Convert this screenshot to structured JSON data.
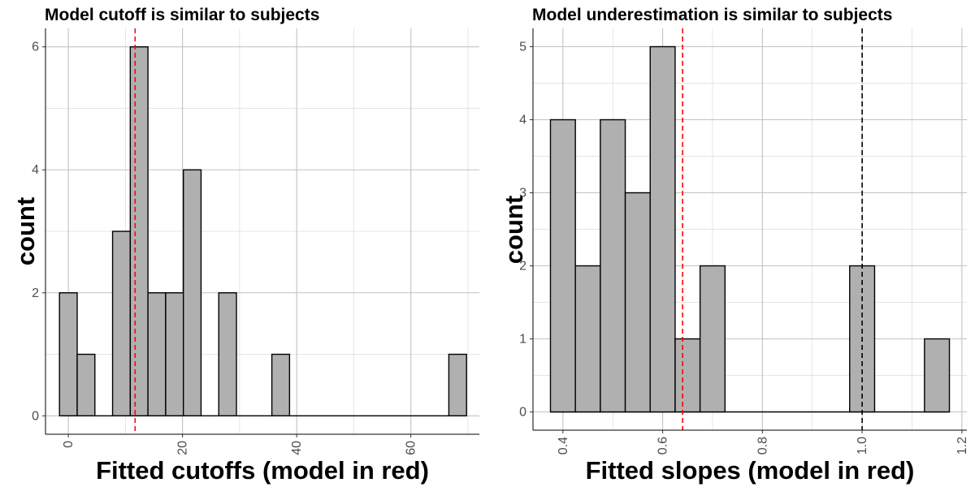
{
  "chart_data": [
    {
      "type": "bar",
      "title": "Model cutoff is similar to subjects",
      "xlabel": "Fitted cutoffs (model in red)",
      "ylabel": "count",
      "bin_width": 3.1,
      "bins": [
        {
          "x": 0.0,
          "count": 2
        },
        {
          "x": 3.1,
          "count": 1
        },
        {
          "x": 9.3,
          "count": 3
        },
        {
          "x": 12.4,
          "count": 6
        },
        {
          "x": 15.5,
          "count": 2
        },
        {
          "x": 18.6,
          "count": 2
        },
        {
          "x": 21.7,
          "count": 4
        },
        {
          "x": 27.9,
          "count": 2
        },
        {
          "x": 37.2,
          "count": 1
        },
        {
          "x": 68.2,
          "count": 1
        }
      ],
      "xlim": [
        -4.0,
        72.0
      ],
      "ylim": [
        -0.3,
        6.3
      ],
      "x_ticks": [
        0,
        20,
        40,
        60
      ],
      "x_tick_labels": [
        "0",
        "20",
        "40",
        "60"
      ],
      "y_ticks": [
        0,
        2,
        4,
        6
      ],
      "y_tick_labels": [
        "0",
        "2",
        "4",
        "6"
      ],
      "reference_lines": [
        {
          "x": 11.7,
          "color": "#ff0000",
          "style": "dashed"
        }
      ],
      "bar_fill": "#b0b0b0",
      "grid": true
    },
    {
      "type": "bar",
      "title": "Model underestimation is similar to subjects",
      "xlabel": "Fitted slopes (model in red)",
      "ylabel": "count",
      "bin_width": 0.05,
      "bins": [
        {
          "x": 0.4,
          "count": 4
        },
        {
          "x": 0.45,
          "count": 2
        },
        {
          "x": 0.5,
          "count": 4
        },
        {
          "x": 0.55,
          "count": 3
        },
        {
          "x": 0.6,
          "count": 5
        },
        {
          "x": 0.65,
          "count": 1
        },
        {
          "x": 0.7,
          "count": 2
        },
        {
          "x": 1.0,
          "count": 2
        },
        {
          "x": 1.15,
          "count": 1
        }
      ],
      "xlim": [
        0.34,
        1.21
      ],
      "ylim": [
        -0.25,
        5.25
      ],
      "x_ticks": [
        0.4,
        0.6,
        0.8,
        1.0,
        1.2
      ],
      "x_tick_labels": [
        "0.4",
        "0.6",
        "0.8",
        "1.0",
        "1.2"
      ],
      "y_ticks": [
        0,
        1,
        2,
        3,
        4,
        5
      ],
      "y_tick_labels": [
        "0",
        "1",
        "2",
        "3",
        "4",
        "5"
      ],
      "reference_lines": [
        {
          "x": 0.64,
          "color": "#ff0000",
          "style": "dashed"
        },
        {
          "x": 1.0,
          "color": "#000000",
          "style": "dashed"
        }
      ],
      "bar_fill": "#b0b0b0",
      "grid": true
    }
  ]
}
